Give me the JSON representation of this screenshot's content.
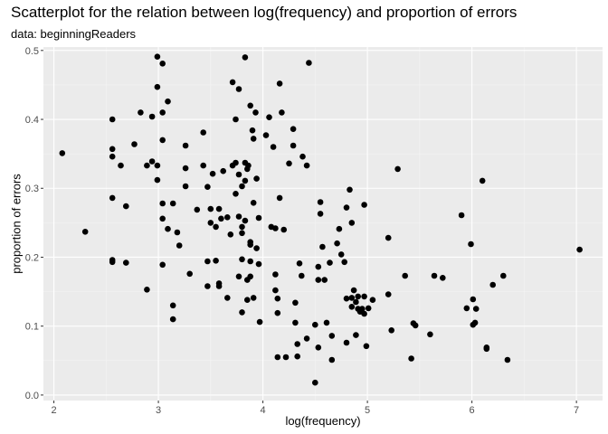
{
  "chart_data": {
    "type": "scatter",
    "title": "Scatterplot for the relation between log(frequency) and proportion of errors",
    "subtitle": "data: beginningReaders",
    "xlabel": "log(frequency)",
    "ylabel": "proportion of errors",
    "xlim": [
      1.9,
      7.25
    ],
    "ylim": [
      -0.008,
      0.505
    ],
    "xticks": [
      2,
      3,
      4,
      5,
      6,
      7
    ],
    "yticks": [
      0.0,
      0.1,
      0.2,
      0.3,
      0.4,
      0.5
    ],
    "xtick_labels": [
      "2",
      "3",
      "4",
      "5",
      "6",
      "7"
    ],
    "ytick_labels": [
      "0.0",
      "0.1",
      "0.2",
      "0.3",
      "0.4",
      "0.5"
    ],
    "grid": true,
    "background": "#ebebeb",
    "point_color": "#000000",
    "points": [
      [
        2.08,
        0.351
      ],
      [
        2.3,
        0.237
      ],
      [
        2.56,
        0.4
      ],
      [
        2.56,
        0.357
      ],
      [
        2.56,
        0.346
      ],
      [
        2.56,
        0.286
      ],
      [
        2.56,
        0.196
      ],
      [
        2.56,
        0.193
      ],
      [
        2.64,
        0.333
      ],
      [
        2.69,
        0.274
      ],
      [
        2.69,
        0.192
      ],
      [
        2.77,
        0.364
      ],
      [
        2.83,
        0.41
      ],
      [
        2.89,
        0.333
      ],
      [
        2.89,
        0.153
      ],
      [
        2.94,
        0.404
      ],
      [
        2.94,
        0.339
      ],
      [
        2.99,
        0.491
      ],
      [
        2.99,
        0.447
      ],
      [
        2.99,
        0.333
      ],
      [
        2.99,
        0.312
      ],
      [
        3.04,
        0.481
      ],
      [
        3.04,
        0.41
      ],
      [
        3.04,
        0.37
      ],
      [
        3.04,
        0.278
      ],
      [
        3.04,
        0.256
      ],
      [
        3.04,
        0.189
      ],
      [
        3.09,
        0.426
      ],
      [
        3.09,
        0.241
      ],
      [
        3.14,
        0.278
      ],
      [
        3.14,
        0.13
      ],
      [
        3.14,
        0.11
      ],
      [
        3.18,
        0.236
      ],
      [
        3.2,
        0.217
      ],
      [
        3.26,
        0.362
      ],
      [
        3.26,
        0.329
      ],
      [
        3.26,
        0.303
      ],
      [
        3.3,
        0.176
      ],
      [
        3.37,
        0.269
      ],
      [
        3.43,
        0.381
      ],
      [
        3.43,
        0.333
      ],
      [
        3.47,
        0.302
      ],
      [
        3.47,
        0.194
      ],
      [
        3.47,
        0.158
      ],
      [
        3.5,
        0.27
      ],
      [
        3.5,
        0.25
      ],
      [
        3.52,
        0.321
      ],
      [
        3.55,
        0.244
      ],
      [
        3.55,
        0.195
      ],
      [
        3.58,
        0.27
      ],
      [
        3.58,
        0.162
      ],
      [
        3.58,
        0.158
      ],
      [
        3.6,
        0.256
      ],
      [
        3.62,
        0.325
      ],
      [
        3.66,
        0.258
      ],
      [
        3.66,
        0.141
      ],
      [
        3.69,
        0.233
      ],
      [
        3.71,
        0.333
      ],
      [
        3.71,
        0.454
      ],
      [
        3.74,
        0.4
      ],
      [
        3.74,
        0.337
      ],
      [
        3.74,
        0.292
      ],
      [
        3.77,
        0.444
      ],
      [
        3.77,
        0.32
      ],
      [
        3.77,
        0.259
      ],
      [
        3.77,
        0.172
      ],
      [
        3.8,
        0.303
      ],
      [
        3.8,
        0.244
      ],
      [
        3.8,
        0.235
      ],
      [
        3.8,
        0.197
      ],
      [
        3.8,
        0.12
      ],
      [
        3.83,
        0.49
      ],
      [
        3.83,
        0.337
      ],
      [
        3.83,
        0.311
      ],
      [
        3.83,
        0.253
      ],
      [
        3.85,
        0.328
      ],
      [
        3.85,
        0.167
      ],
      [
        3.85,
        0.138
      ],
      [
        3.86,
        0.333
      ],
      [
        3.88,
        0.42
      ],
      [
        3.88,
        0.222
      ],
      [
        3.88,
        0.218
      ],
      [
        3.88,
        0.194
      ],
      [
        3.88,
        0.172
      ],
      [
        3.9,
        0.384
      ],
      [
        3.91,
        0.372
      ],
      [
        3.91,
        0.279
      ],
      [
        3.91,
        0.141
      ],
      [
        3.93,
        0.41
      ],
      [
        3.94,
        0.314
      ],
      [
        3.94,
        0.213
      ],
      [
        3.96,
        0.257
      ],
      [
        3.96,
        0.19
      ],
      [
        3.97,
        0.106
      ],
      [
        4.03,
        0.377
      ],
      [
        4.06,
        0.403
      ],
      [
        4.08,
        0.244
      ],
      [
        4.1,
        0.36
      ],
      [
        4.12,
        0.242
      ],
      [
        4.12,
        0.175
      ],
      [
        4.12,
        0.152
      ],
      [
        4.14,
        0.14
      ],
      [
        4.14,
        0.119
      ],
      [
        4.14,
        0.055
      ],
      [
        4.16,
        0.452
      ],
      [
        4.16,
        0.286
      ],
      [
        4.18,
        0.41
      ],
      [
        4.2,
        0.24
      ],
      [
        4.22,
        0.055
      ],
      [
        4.25,
        0.336
      ],
      [
        4.29,
        0.386
      ],
      [
        4.29,
        0.362
      ],
      [
        4.31,
        0.134
      ],
      [
        4.31,
        0.105
      ],
      [
        4.33,
        0.074
      ],
      [
        4.33,
        0.056
      ],
      [
        4.35,
        0.191
      ],
      [
        4.37,
        0.173
      ],
      [
        4.38,
        0.346
      ],
      [
        4.42,
        0.333
      ],
      [
        4.42,
        0.082
      ],
      [
        4.44,
        0.482
      ],
      [
        4.5,
        0.102
      ],
      [
        4.5,
        0.018
      ],
      [
        4.53,
        0.186
      ],
      [
        4.53,
        0.167
      ],
      [
        4.53,
        0.069
      ],
      [
        4.55,
        0.28
      ],
      [
        4.55,
        0.263
      ],
      [
        4.57,
        0.215
      ],
      [
        4.59,
        0.167
      ],
      [
        4.61,
        0.105
      ],
      [
        4.64,
        0.192
      ],
      [
        4.66,
        0.086
      ],
      [
        4.66,
        0.051
      ],
      [
        4.71,
        0.22
      ],
      [
        4.73,
        0.241
      ],
      [
        4.75,
        0.204
      ],
      [
        4.78,
        0.193
      ],
      [
        4.8,
        0.272
      ],
      [
        4.8,
        0.14
      ],
      [
        4.8,
        0.076
      ],
      [
        4.83,
        0.298
      ],
      [
        4.85,
        0.25
      ],
      [
        4.85,
        0.141
      ],
      [
        4.85,
        0.128
      ],
      [
        4.87,
        0.152
      ],
      [
        4.89,
        0.135
      ],
      [
        4.89,
        0.087
      ],
      [
        4.91,
        0.143
      ],
      [
        4.91,
        0.125
      ],
      [
        4.93,
        0.121
      ],
      [
        4.95,
        0.125
      ],
      [
        4.97,
        0.276
      ],
      [
        4.97,
        0.143
      ],
      [
        4.97,
        0.118
      ],
      [
        4.99,
        0.071
      ],
      [
        5.01,
        0.126
      ],
      [
        5.05,
        0.138
      ],
      [
        5.2,
        0.228
      ],
      [
        5.2,
        0.146
      ],
      [
        5.23,
        0.094
      ],
      [
        5.29,
        0.328
      ],
      [
        5.36,
        0.173
      ],
      [
        5.42,
        0.053
      ],
      [
        5.44,
        0.104
      ],
      [
        5.46,
        0.101
      ],
      [
        5.6,
        0.088
      ],
      [
        5.64,
        0.173
      ],
      [
        5.72,
        0.17
      ],
      [
        5.9,
        0.261
      ],
      [
        5.95,
        0.126
      ],
      [
        5.99,
        0.219
      ],
      [
        6.01,
        0.139
      ],
      [
        6.01,
        0.102
      ],
      [
        6.03,
        0.105
      ],
      [
        6.04,
        0.125
      ],
      [
        6.1,
        0.311
      ],
      [
        6.14,
        0.069
      ],
      [
        6.14,
        0.067
      ],
      [
        6.2,
        0.16
      ],
      [
        6.3,
        0.173
      ],
      [
        6.34,
        0.051
      ],
      [
        7.03,
        0.211
      ]
    ]
  }
}
